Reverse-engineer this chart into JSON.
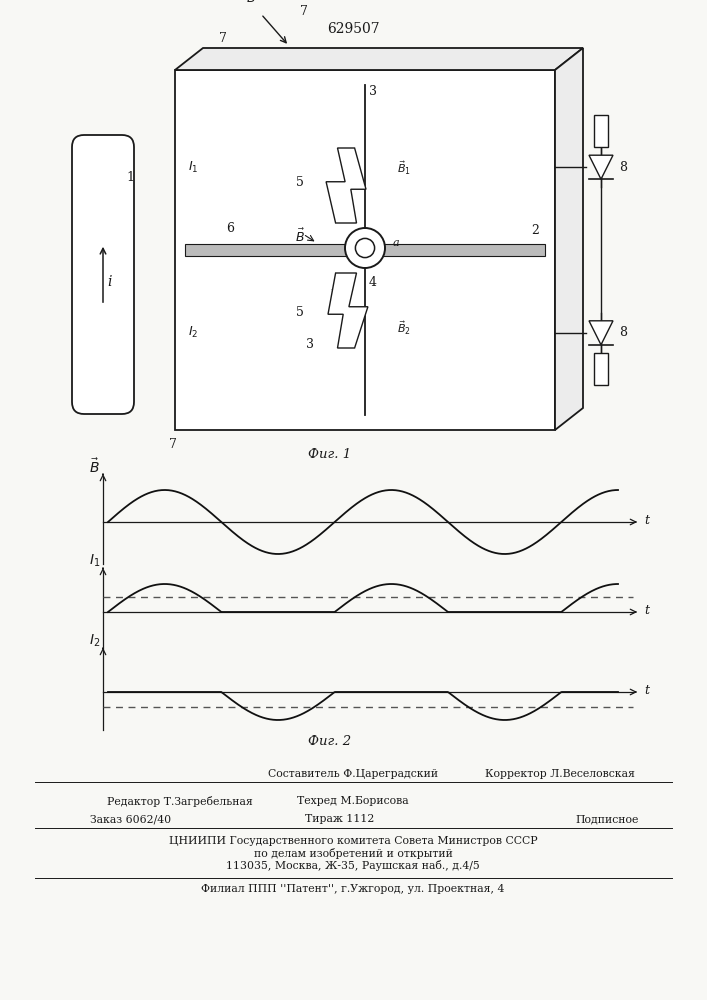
{
  "patent_number": "629507",
  "fig1_caption": "Фиг. 1",
  "fig2_caption": "Фиг. 2",
  "editor_label": "Редактор Т.Загребельная",
  "composer_label": "Составитель Ф.Цареградский",
  "techred_label": "Техред М.Борисова",
  "corrector_label": "Корректор Л.Веселовская",
  "order_label": "Заказ 6062/40",
  "tirazh_label": "Тираж 1112",
  "podpisnoe_label": "Подписное",
  "cniipi_label": "ЦНИИПИ Государственного комитета Совета Министров СССР",
  "affairs_label": "по делам изобретений и открытий",
  "address_label": "113035, Москва, Ж-35, Раушская наб., д.4/5",
  "filial_label": "Филиал ППП ''Патент'', г.Ужгород, ул. Проектная, 4",
  "bg_color": "#f8f8f5",
  "line_color": "#1a1a1a",
  "wave_color": "#111111",
  "dashed_color": "#555555"
}
